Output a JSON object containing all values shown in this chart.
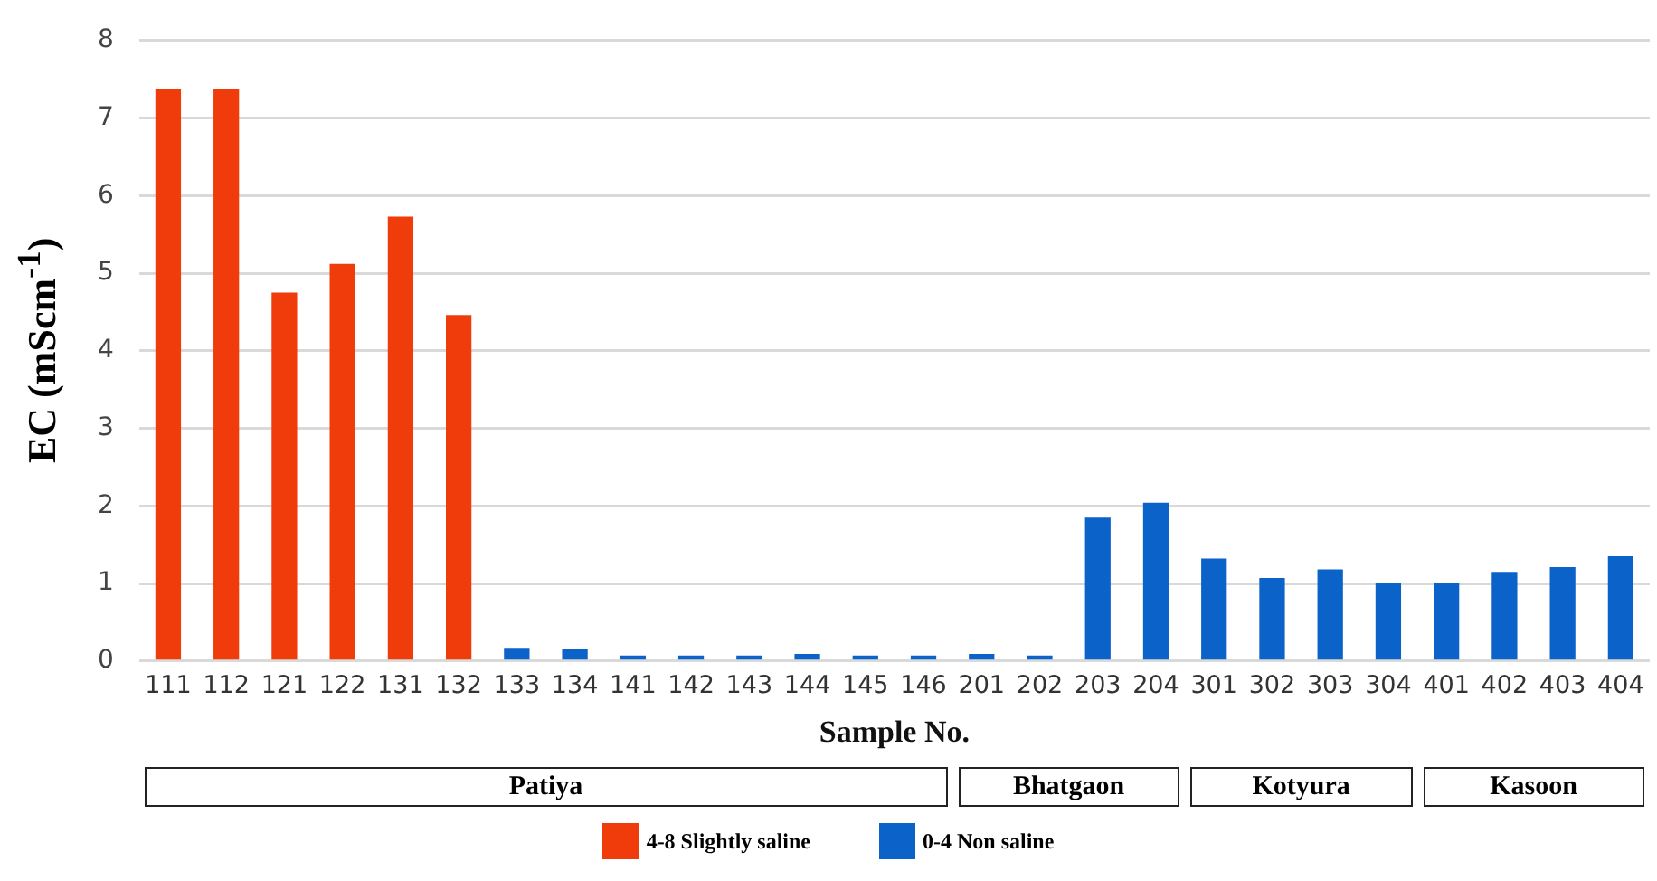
{
  "chart_data": {
    "type": "bar",
    "xlabel": "Sample No.",
    "ylabel": "EC (mScm$^{-1}$)",
    "categories": [
      "111",
      "112",
      "121",
      "122",
      "131",
      "132",
      "133",
      "134",
      "141",
      "142",
      "143",
      "144",
      "145",
      "146",
      "201",
      "202",
      "203",
      "204",
      "301",
      "302",
      "303",
      "304",
      "401",
      "402",
      "403",
      "404"
    ],
    "series": [
      {
        "name": "4-8 Slightly saline",
        "color": "#f03c0a",
        "values": [
          7.38,
          7.38,
          4.75,
          5.12,
          5.73,
          4.46,
          null,
          null,
          null,
          null,
          null,
          null,
          null,
          null,
          null,
          null,
          null,
          null,
          null,
          null,
          null,
          null,
          null,
          null,
          null,
          null
        ]
      },
      {
        "name": "0-4 Non saline",
        "color": "#0b62c9",
        "values": [
          null,
          null,
          null,
          null,
          null,
          null,
          0.17,
          0.15,
          0.07,
          0.07,
          0.07,
          0.09,
          0.07,
          0.07,
          0.09,
          0.07,
          1.85,
          2.04,
          1.32,
          1.07,
          1.18,
          1.01,
          1.01,
          1.15,
          1.21,
          1.35
        ]
      }
    ],
    "ylim": [
      0,
      8
    ],
    "yticks": [
      0,
      1,
      2,
      3,
      4,
      5,
      6,
      7,
      8
    ],
    "grid": "y",
    "legend": "bottom",
    "annotations": [
      "Patiya",
      "Bhatgaon",
      "Kotyura",
      "Kasoon"
    ]
  }
}
